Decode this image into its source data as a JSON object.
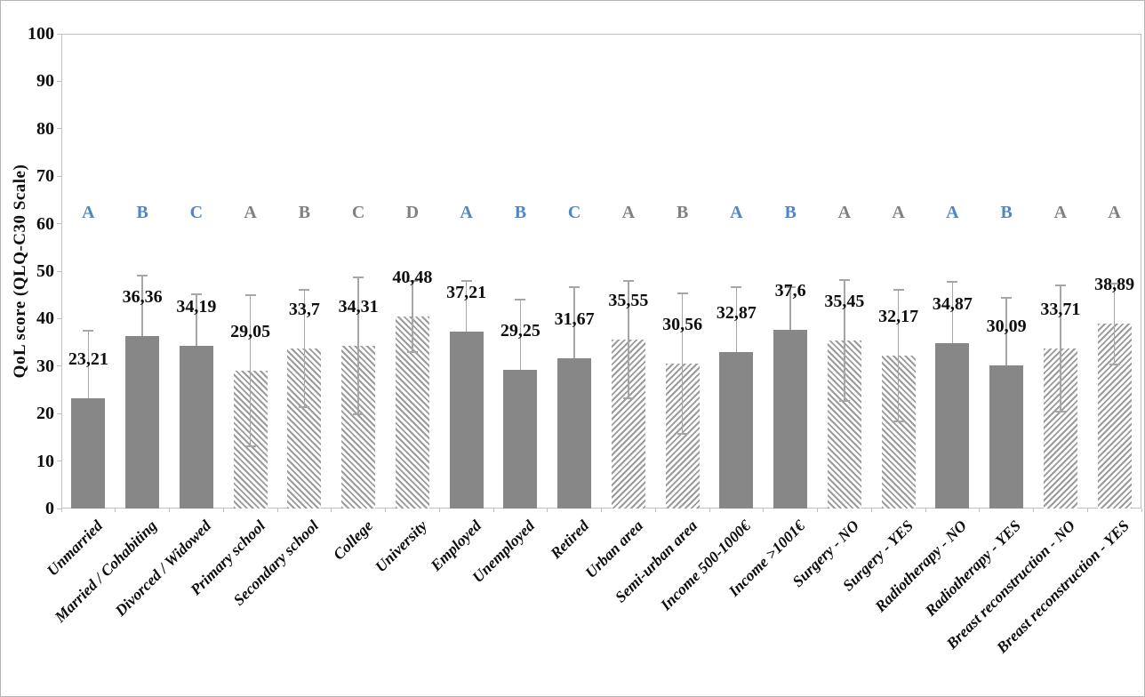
{
  "figure": {
    "background": "#ffffff",
    "border_color": "#b5b5b5"
  },
  "chart_data": {
    "type": "bar",
    "title": "",
    "xlabel": "",
    "ylabel": "QoL score (QLQ-C30  Scale)",
    "ylim": [
      0,
      100
    ],
    "yticks": [
      0,
      10,
      20,
      30,
      40,
      50,
      60,
      70,
      80,
      90,
      100
    ],
    "grid": false,
    "legend": "none",
    "value_decimal_separator": ",",
    "error_bars": "plus-minus, cap ends, light gray",
    "significance_letter_row_value": 63,
    "colors": {
      "solid_bar": "#878787",
      "hatch_stroke": "#9b9b9b",
      "error_bar": "#a6a6a6",
      "letter_blue": "#4e86c6",
      "letter_gray": "#808080",
      "axis_line": "#bfbfbf",
      "text": "#0d0d0d"
    },
    "categories": [
      "Unmarried",
      "Married / Cohabiting",
      "Divorced / Widowed",
      "Primary school",
      "Secondary school",
      "College",
      "University",
      "Employed",
      "Unemployed",
      "Retired",
      "Urban area",
      "Semi-urban area",
      "Income 500-1000€",
      "Income >1001€",
      "Surgery - NO",
      "Surgery - YES",
      "Radiotherapy - NO",
      "Radiotherapy - YES",
      "Breast reconstruction - NO",
      "Breast reconstruction - YES"
    ],
    "bars": [
      {
        "category": "Unmarried",
        "value": 23.21,
        "label": "23,21",
        "error": 14.2,
        "letter": "A",
        "letter_color": "blue",
        "fill": "solid"
      },
      {
        "category": "Married / Cohabiting",
        "value": 36.36,
        "label": "36,36",
        "error": 12.7,
        "letter": "B",
        "letter_color": "blue",
        "fill": "solid"
      },
      {
        "category": "Divorced / Widowed",
        "value": 34.19,
        "label": "34,19",
        "error": 10.9,
        "letter": "C",
        "letter_color": "blue",
        "fill": "solid"
      },
      {
        "category": "Primary school",
        "value": 29.05,
        "label": "29,05",
        "error": 15.9,
        "letter": "A",
        "letter_color": "gray",
        "fill": "hatch-down"
      },
      {
        "category": "Secondary school",
        "value": 33.7,
        "label": "33,7",
        "error": 12.4,
        "letter": "B",
        "letter_color": "gray",
        "fill": "hatch-down"
      },
      {
        "category": "College",
        "value": 34.31,
        "label": "34,31",
        "error": 14.4,
        "letter": "C",
        "letter_color": "gray",
        "fill": "hatch-down"
      },
      {
        "category": "University",
        "value": 40.48,
        "label": "40,48",
        "error": 7.5,
        "letter": "D",
        "letter_color": "gray",
        "fill": "hatch-down"
      },
      {
        "category": "Employed",
        "value": 37.21,
        "label": "37,21",
        "error": 10.7,
        "letter": "A",
        "letter_color": "blue",
        "fill": "solid"
      },
      {
        "category": "Unemployed",
        "value": 29.25,
        "label": "29,25",
        "error": 14.7,
        "letter": "B",
        "letter_color": "blue",
        "fill": "solid"
      },
      {
        "category": "Retired",
        "value": 31.67,
        "label": "31,67",
        "error": 15.0,
        "letter": "C",
        "letter_color": "blue",
        "fill": "solid"
      },
      {
        "category": "Urban area",
        "value": 35.55,
        "label": "35,55",
        "error": 12.3,
        "letter": "A",
        "letter_color": "gray",
        "fill": "hatch-up"
      },
      {
        "category": "Semi-urban area",
        "value": 30.56,
        "label": "30,56",
        "error": 14.8,
        "letter": "B",
        "letter_color": "gray",
        "fill": "hatch-up"
      },
      {
        "category": "Income 500-1000€",
        "value": 32.87,
        "label": "32,87",
        "error": 13.7,
        "letter": "A",
        "letter_color": "blue",
        "fill": "solid"
      },
      {
        "category": "Income >1001€",
        "value": 37.6,
        "label": "37,6",
        "error": 9.0,
        "letter": "B",
        "letter_color": "blue",
        "fill": "solid"
      },
      {
        "category": "Surgery - NO",
        "value": 35.45,
        "label": "35,45",
        "error": 12.7,
        "letter": "A",
        "letter_color": "gray",
        "fill": "hatch-down"
      },
      {
        "category": "Surgery - YES",
        "value": 32.17,
        "label": "32,17",
        "error": 13.9,
        "letter": "A",
        "letter_color": "gray",
        "fill": "hatch-down"
      },
      {
        "category": "Radiotherapy - NO",
        "value": 34.87,
        "label": "34,87",
        "error": 12.8,
        "letter": "A",
        "letter_color": "blue",
        "fill": "solid"
      },
      {
        "category": "Radiotherapy - YES",
        "value": 30.09,
        "label": "30,09",
        "error": 14.2,
        "letter": "B",
        "letter_color": "blue",
        "fill": "solid"
      },
      {
        "category": "Breast reconstruction - NO",
        "value": 33.71,
        "label": "33,71",
        "error": 13.3,
        "letter": "A",
        "letter_color": "gray",
        "fill": "hatch-up"
      },
      {
        "category": "Breast reconstruction - YES",
        "value": 38.89,
        "label": "38,89",
        "error": 8.5,
        "letter": "A",
        "letter_color": "gray",
        "fill": "hatch-up"
      }
    ]
  }
}
